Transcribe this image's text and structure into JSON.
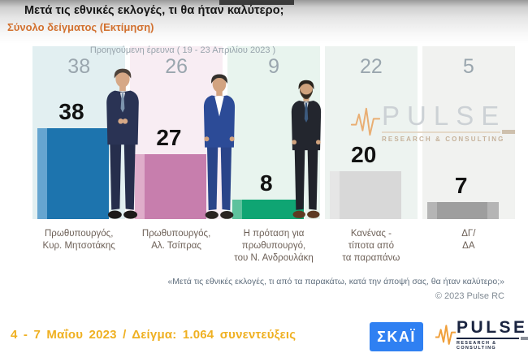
{
  "page": {
    "title": "Μετά τις εθνικές εκλογές, τι θα ήταν καλύτερο;",
    "subtitle": "Σύνολο δείγματος  (Εκτίμηση)"
  },
  "chart_data": {
    "type": "bar",
    "title": "Μετά τις εθνικές εκλογές, τι θα ήταν καλύτερο;",
    "subtitle": "Σύνολο δείγματος (Εκτίμηση)",
    "previous_wave_label": "Προηγούμενη έρευνα ( 19 - 23 Απριλίου 2023 )",
    "categories": [
      "Πρωθυπουργός, Κυρ. Μητσοτάκης",
      "Πρωθυπουργός, Αλ. Τσίπρας",
      "Η πρόταση για πρωθυπουργό, του Ν. Ανδρουλάκη",
      "Κανένας - τίποτα από τα παραπάνω",
      "ΔΓ/ΔΑ"
    ],
    "series": [
      {
        "name": "Εκτίμηση 4 - 7 Μαΐου 2023",
        "values": [
          38,
          27,
          8,
          20,
          7
        ]
      },
      {
        "name": "Προηγούμενη έρευνα 19 - 23 Απριλίου 2023",
        "values": [
          38,
          26,
          9,
          22,
          5
        ]
      }
    ],
    "ylim": [
      0,
      40
    ],
    "grid": false,
    "legend_position": "none",
    "bar_colors": [
      "#1d74ae",
      "#c77ead",
      "#0fa573",
      "#d8d8d8",
      "#9e9e9e"
    ],
    "bar_edge_colors": [
      "#66a5d0",
      "#dfadca",
      "#5ec29d",
      "#e6e6e6",
      "#b5b5b5"
    ],
    "column_tints": [
      "#e2eff1",
      "#f8edf3",
      "#e8f4ee",
      "#edf3f0",
      "#f1f2f0"
    ],
    "columns": [
      {
        "previous": 38,
        "value": 38,
        "label": "Πρωθυπουργός,\nΚυρ. Μητσοτάκης"
      },
      {
        "previous": 26,
        "value": 27,
        "label": "Πρωθυπουργός,\nΑλ. Τσίπρας"
      },
      {
        "previous": 9,
        "value": 8,
        "label": "Η πρόταση για\nπρωθυπουργό,\nτου Ν. Ανδρουλάκη"
      },
      {
        "previous": 22,
        "value": 20,
        "label": "Κανένας -\nτίποτα από\nτα παραπάνω"
      },
      {
        "previous": 5,
        "value": 7,
        "label": "ΔΓ/\nΔΑ"
      }
    ]
  },
  "brand": {
    "name": "PULSE",
    "tagline": "RESEARCH & CONSULTING",
    "skai": "ΣΚΑΪ",
    "skai_blue": "#2f80f2",
    "pulse_orange": "#f0a03c"
  },
  "footer": {
    "question_note": "«Μετά τις εθνικές εκλογές, τι από τα παρακάτω, κατά την άποψή σας, θα ήταν καλύτερο;»",
    "copyright": "© 2023 Pulse RC",
    "fieldwork": "4 - 7  Μαΐου  2023  /  Δείγμα:  1.064 συνεντεύξεις",
    "fieldwork_color": "#efb021"
  }
}
